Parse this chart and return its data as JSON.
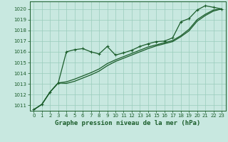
{
  "xlabel": "Graphe pression niveau de la mer (hPa)",
  "xlim": [
    -0.5,
    23.5
  ],
  "ylim": [
    1010.5,
    1020.7
  ],
  "yticks": [
    1011,
    1012,
    1013,
    1014,
    1015,
    1016,
    1017,
    1018,
    1019,
    1020
  ],
  "xticks": [
    0,
    1,
    2,
    3,
    4,
    5,
    6,
    7,
    8,
    9,
    10,
    11,
    12,
    13,
    14,
    15,
    16,
    17,
    18,
    19,
    20,
    21,
    22,
    23
  ],
  "background_color": "#c8e8e0",
  "grid_color": "#99ccbb",
  "line_color": "#1a5c2a",
  "tick_color": "#1a5c2a",
  "line1_x": [
    0,
    1,
    2,
    3,
    4,
    5,
    6,
    7,
    8,
    9,
    10,
    11,
    12,
    13,
    14,
    15,
    16,
    17,
    18,
    19,
    20,
    21,
    22,
    23
  ],
  "line1_y": [
    1010.6,
    1011.1,
    1012.25,
    1013.1,
    1016.0,
    1016.2,
    1016.3,
    1016.0,
    1015.8,
    1016.5,
    1015.7,
    1015.9,
    1016.15,
    1016.5,
    1016.75,
    1016.95,
    1017.0,
    1017.3,
    1018.8,
    1019.1,
    1019.9,
    1020.3,
    1020.15,
    1020.0
  ],
  "line2_x": [
    0,
    1,
    2,
    3,
    4,
    5,
    6,
    7,
    8,
    9,
    10,
    11,
    12,
    13,
    14,
    15,
    16,
    17,
    18,
    19,
    20,
    21,
    22,
    23
  ],
  "line2_y": [
    1010.6,
    1011.1,
    1012.25,
    1013.1,
    1013.2,
    1013.45,
    1013.75,
    1014.05,
    1014.4,
    1014.9,
    1015.25,
    1015.55,
    1015.85,
    1016.15,
    1016.45,
    1016.65,
    1016.85,
    1017.05,
    1017.5,
    1018.1,
    1019.0,
    1019.5,
    1019.9,
    1020.0
  ],
  "line3_x": [
    0,
    1,
    2,
    3,
    4,
    5,
    6,
    7,
    8,
    9,
    10,
    11,
    12,
    13,
    14,
    15,
    16,
    17,
    18,
    19,
    20,
    21,
    22,
    23
  ],
  "line3_y": [
    1010.6,
    1011.1,
    1012.25,
    1013.1,
    1013.05,
    1013.25,
    1013.55,
    1013.85,
    1014.2,
    1014.7,
    1015.1,
    1015.4,
    1015.7,
    1016.0,
    1016.3,
    1016.55,
    1016.75,
    1016.95,
    1017.4,
    1017.95,
    1018.85,
    1019.38,
    1019.8,
    1020.0
  ]
}
